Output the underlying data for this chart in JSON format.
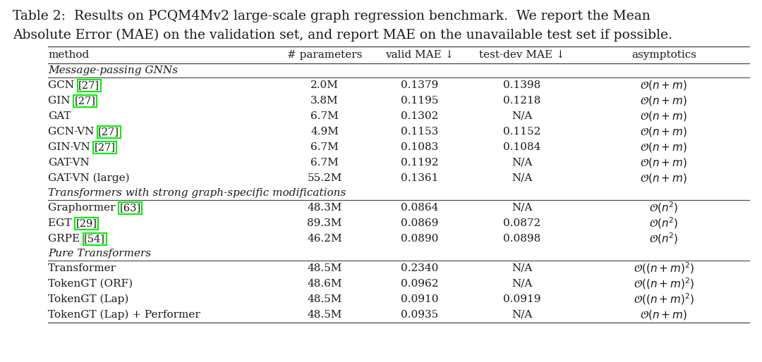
{
  "title_line1": "Table 2:  Results on PCQM4Mv2 large-scale graph regression benchmark.  We report the Mean",
  "title_line2": "Absolute Error (MAE) on the validation set, and report MAE on the unavailable test set if possible.",
  "columns": [
    "method",
    "# parameters",
    "valid MAE ↓",
    "test-dev MAE ↓",
    "asymptotics"
  ],
  "section_headers": [
    {
      "label": "Message-passing GNNs",
      "row_before": 0
    },
    {
      "label": "Transformers with strong graph-specific modifications",
      "row_before": 7
    },
    {
      "label": "Pure Transformers",
      "row_before": 10
    }
  ],
  "rows": [
    {
      "method": "GCN ",
      "cite": "[27]",
      "params": "2.0M",
      "valid_mae": "0.1379",
      "test_mae": "0.1398",
      "asym": "$\\mathcal{O}(n+m)$"
    },
    {
      "method": "GIN ",
      "cite": "[27]",
      "params": "3.8M",
      "valid_mae": "0.1195",
      "test_mae": "0.1218",
      "asym": "$\\mathcal{O}(n+m)$"
    },
    {
      "method": "GAT",
      "cite": "",
      "params": "6.7M",
      "valid_mae": "0.1302",
      "test_mae": "N/A",
      "asym": "$\\mathcal{O}(n+m)$"
    },
    {
      "method": "GCN-VN ",
      "cite": "[27]",
      "params": "4.9M",
      "valid_mae": "0.1153",
      "test_mae": "0.1152",
      "asym": "$\\mathcal{O}(n+m)$"
    },
    {
      "method": "GIN-VN ",
      "cite": "[27]",
      "params": "6.7M",
      "valid_mae": "0.1083",
      "test_mae": "0.1084",
      "asym": "$\\mathcal{O}(n+m)$"
    },
    {
      "method": "GAT-VN",
      "cite": "",
      "params": "6.7M",
      "valid_mae": "0.1192",
      "test_mae": "N/A",
      "asym": "$\\mathcal{O}(n+m)$"
    },
    {
      "method": "GAT-VN (large)",
      "cite": "",
      "params": "55.2M",
      "valid_mae": "0.1361",
      "test_mae": "N/A",
      "asym": "$\\mathcal{O}(n+m)$"
    },
    {
      "method": "Graphormer ",
      "cite": "[63]",
      "params": "48.3M",
      "valid_mae": "0.0864",
      "test_mae": "N/A",
      "asym": "$\\mathcal{O}(n^2)$"
    },
    {
      "method": "EGT ",
      "cite": "[29]",
      "params": "89.3M",
      "valid_mae": "0.0869",
      "test_mae": "0.0872",
      "asym": "$\\mathcal{O}(n^2)$"
    },
    {
      "method": "GRPE ",
      "cite": "[54]",
      "params": "46.2M",
      "valid_mae": "0.0890",
      "test_mae": "0.0898",
      "asym": "$\\mathcal{O}(n^2)$"
    },
    {
      "method": "Transformer",
      "cite": "",
      "params": "48.5M",
      "valid_mae": "0.2340",
      "test_mae": "N/A",
      "asym": "$\\mathcal{O}((n+m)^2)$"
    },
    {
      "method": "TokenGT (ORF)",
      "cite": "",
      "params": "48.6M",
      "valid_mae": "0.0962",
      "test_mae": "N/A",
      "asym": "$\\mathcal{O}((n+m)^2)$"
    },
    {
      "method": "TokenGT (Lap)",
      "cite": "",
      "params": "48.5M",
      "valid_mae": "0.0910",
      "test_mae": "0.0919",
      "asym": "$\\mathcal{O}((n+m)^2)$"
    },
    {
      "method": "TokenGT (Lap) + Performer",
      "cite": "",
      "params": "48.5M",
      "valid_mae": "0.0935",
      "test_mae": "N/A",
      "asym": "$\\mathcal{O}(n+m)$"
    }
  ],
  "highlight_color": "#00ee00",
  "bg_color": "#ffffff",
  "text_color": "#1a1a1a",
  "title_fontsize": 13.5,
  "body_fontsize": 11.0
}
